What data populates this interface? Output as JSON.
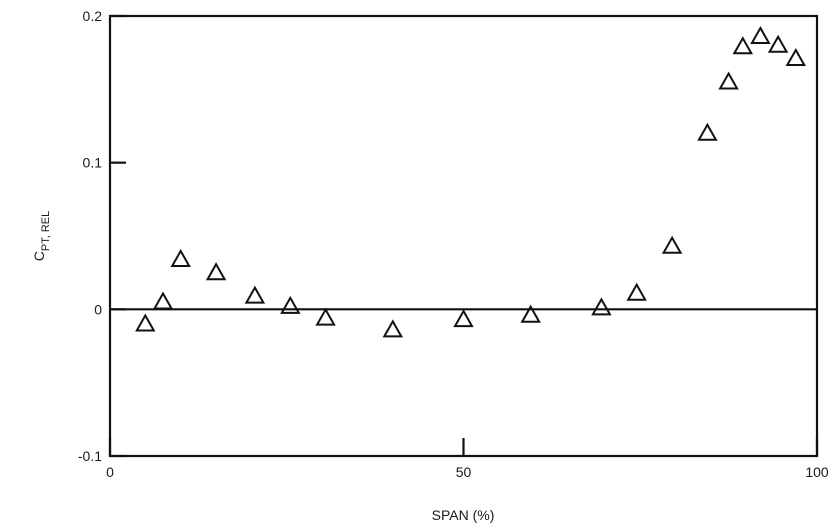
{
  "chart_data": {
    "type": "scatter",
    "xlabel": "SPAN (%)",
    "ylabel": {
      "main": "C",
      "subscript": "PT, REL"
    },
    "xlim": [
      0,
      100
    ],
    "ylim": [
      -0.1,
      0.2
    ],
    "xticks": [
      {
        "value": 0,
        "label": "0"
      },
      {
        "value": 50,
        "label": "50"
      },
      {
        "value": 100,
        "label": "100"
      }
    ],
    "yticks": [
      {
        "value": 0.2,
        "label": "0.2"
      },
      {
        "value": 0.1,
        "label": "0.1"
      },
      {
        "value": 0,
        "label": "0"
      },
      {
        "value": -0.1,
        "label": "-0.1"
      }
    ],
    "grid": false,
    "zero_line": true,
    "marker": "open-triangle",
    "points": [
      {
        "x": 5.0,
        "y": -0.01
      },
      {
        "x": 7.5,
        "y": 0.005
      },
      {
        "x": 10.0,
        "y": 0.034
      },
      {
        "x": 15.0,
        "y": 0.025
      },
      {
        "x": 20.5,
        "y": 0.009
      },
      {
        "x": 25.5,
        "y": 0.002
      },
      {
        "x": 30.5,
        "y": -0.006
      },
      {
        "x": 40.0,
        "y": -0.014
      },
      {
        "x": 50.0,
        "y": -0.007
      },
      {
        "x": 59.5,
        "y": -0.004
      },
      {
        "x": 69.5,
        "y": 0.001
      },
      {
        "x": 74.5,
        "y": 0.011
      },
      {
        "x": 79.5,
        "y": 0.043
      },
      {
        "x": 84.5,
        "y": 0.12
      },
      {
        "x": 87.5,
        "y": 0.155
      },
      {
        "x": 89.5,
        "y": 0.179
      },
      {
        "x": 92.0,
        "y": 0.186
      },
      {
        "x": 94.5,
        "y": 0.18
      },
      {
        "x": 97.0,
        "y": 0.171
      }
    ]
  }
}
